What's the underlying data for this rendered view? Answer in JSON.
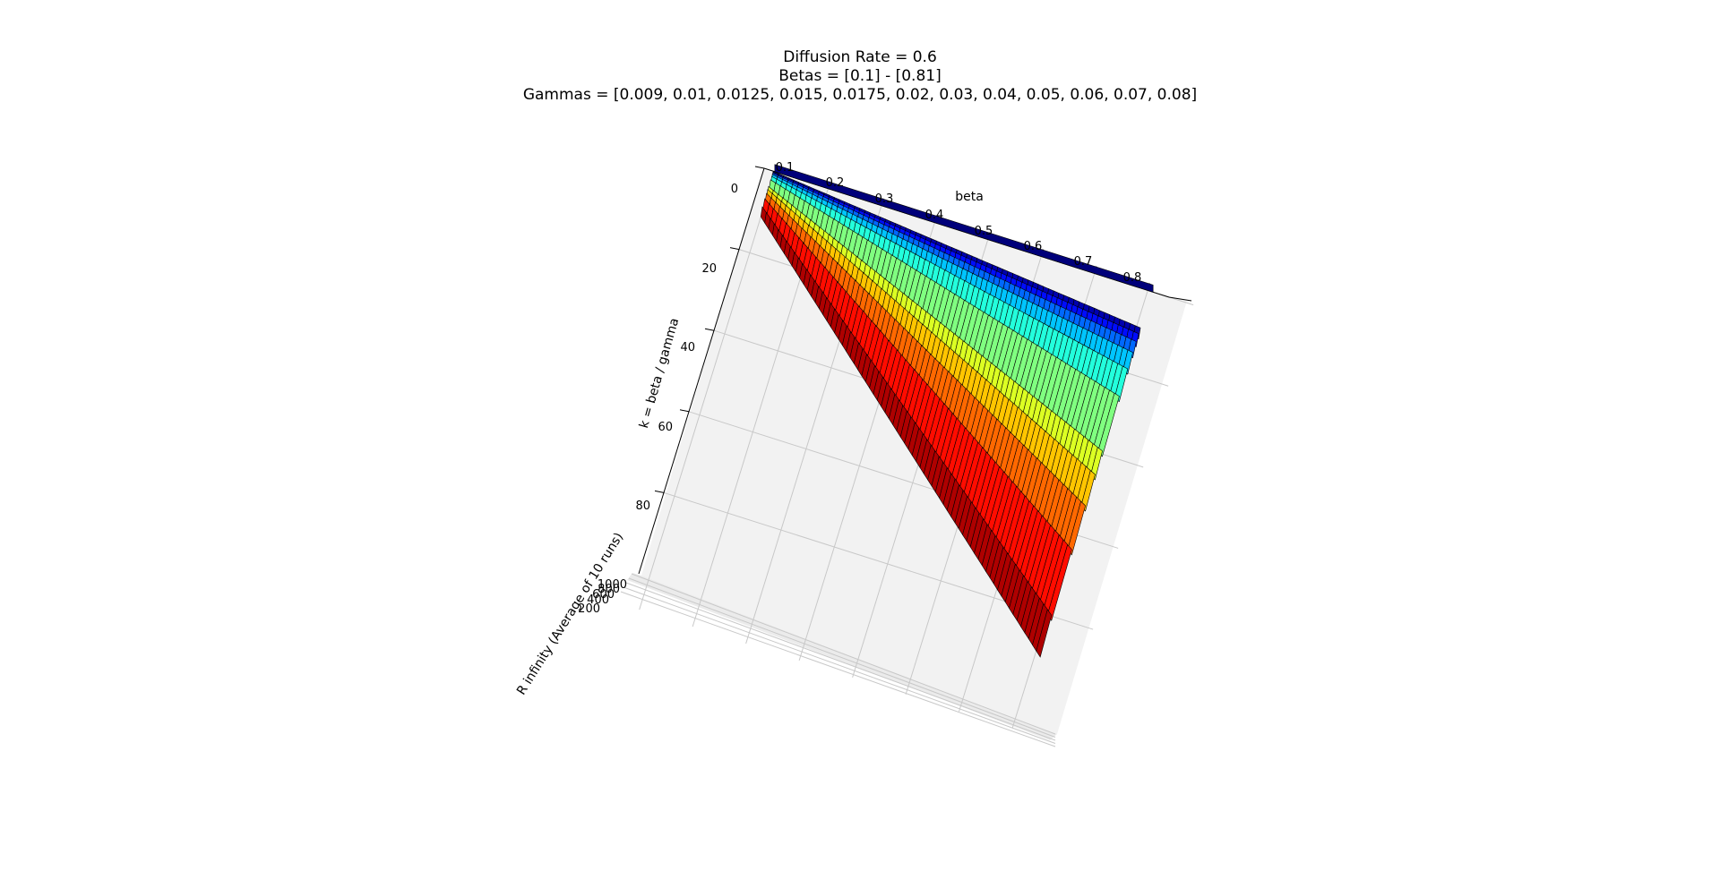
{
  "chart_data": {
    "type": "surface3d",
    "title_lines": [
      "Diffusion Rate = 0.6",
      "Betas = [0.1] - [0.81]",
      "Gammas = [0.009, 0.01, 0.0125, 0.015, 0.0175, 0.02, 0.03, 0.04, 0.05, 0.06, 0.07, 0.08]"
    ],
    "xlabel": "beta",
    "ylabel": "k = beta / gamma",
    "zlabel": "R infinity (Average of 10 runs)",
    "x_ticks": [
      "0.1",
      "0.2",
      "0.3",
      "0.4",
      "0.5",
      "0.6",
      "0.7",
      "0.8"
    ],
    "y_ticks": [
      "0",
      "20",
      "40",
      "60",
      "80"
    ],
    "z_ticks": [
      "200",
      "400",
      "600",
      "800",
      "1000"
    ],
    "colormap": "jet",
    "beta_range": [
      0.1,
      0.81
    ],
    "gammas": [
      0.009,
      0.01,
      0.0125,
      0.015,
      0.0175,
      0.02,
      0.03,
      0.04,
      0.05,
      0.06,
      0.07,
      0.08
    ],
    "zlim": [
      0,
      1000
    ],
    "grid": true
  }
}
